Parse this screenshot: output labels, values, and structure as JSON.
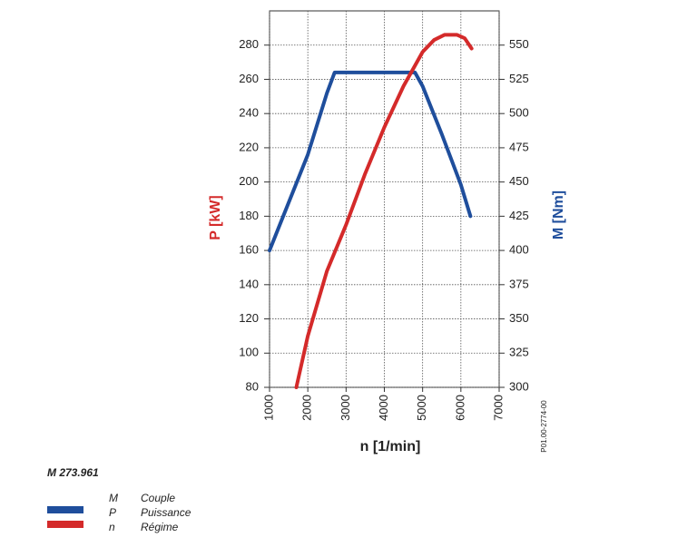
{
  "chart_data": {
    "type": "line",
    "xlabel": "n [1/min]",
    "ylabel": "P [kW]",
    "y2label": "M [Nm]",
    "annotation": "P01.00-2774-00",
    "legend_title": "M 273.961",
    "x_symbol": "n",
    "x_name": "Régime",
    "xlim": [
      1000,
      7000
    ],
    "xticks": [
      1000,
      2000,
      3000,
      4000,
      5000,
      6000,
      7000
    ],
    "ylim": [
      80,
      300
    ],
    "yticks": [
      80,
      100,
      120,
      140,
      160,
      180,
      200,
      220,
      240,
      260,
      280
    ],
    "y2lim": [
      300,
      575
    ],
    "y2ticks": [
      300,
      325,
      350,
      375,
      400,
      425,
      450,
      475,
      500,
      525,
      550
    ],
    "grid": true,
    "series": [
      {
        "name": "Couple",
        "symbol": "M",
        "color": "#1f4e9c",
        "axis": "y2",
        "x": [
          1000,
          2000,
          2500,
          2700,
          4800,
          5000,
          5500,
          6000,
          6250
        ],
        "values": [
          400,
          470,
          515,
          530,
          530,
          520,
          485,
          448,
          425
        ]
      },
      {
        "name": "Puissance",
        "symbol": "P",
        "color": "#d42a2a",
        "x": [
          1700,
          2000,
          2500,
          3000,
          3500,
          4000,
          4500,
          4800,
          5000,
          5300,
          5570,
          5900,
          6100,
          6280
        ],
        "values": [
          80,
          110,
          148,
          175,
          205,
          232,
          256,
          268,
          276,
          283,
          286,
          286,
          284,
          278
        ]
      }
    ]
  }
}
